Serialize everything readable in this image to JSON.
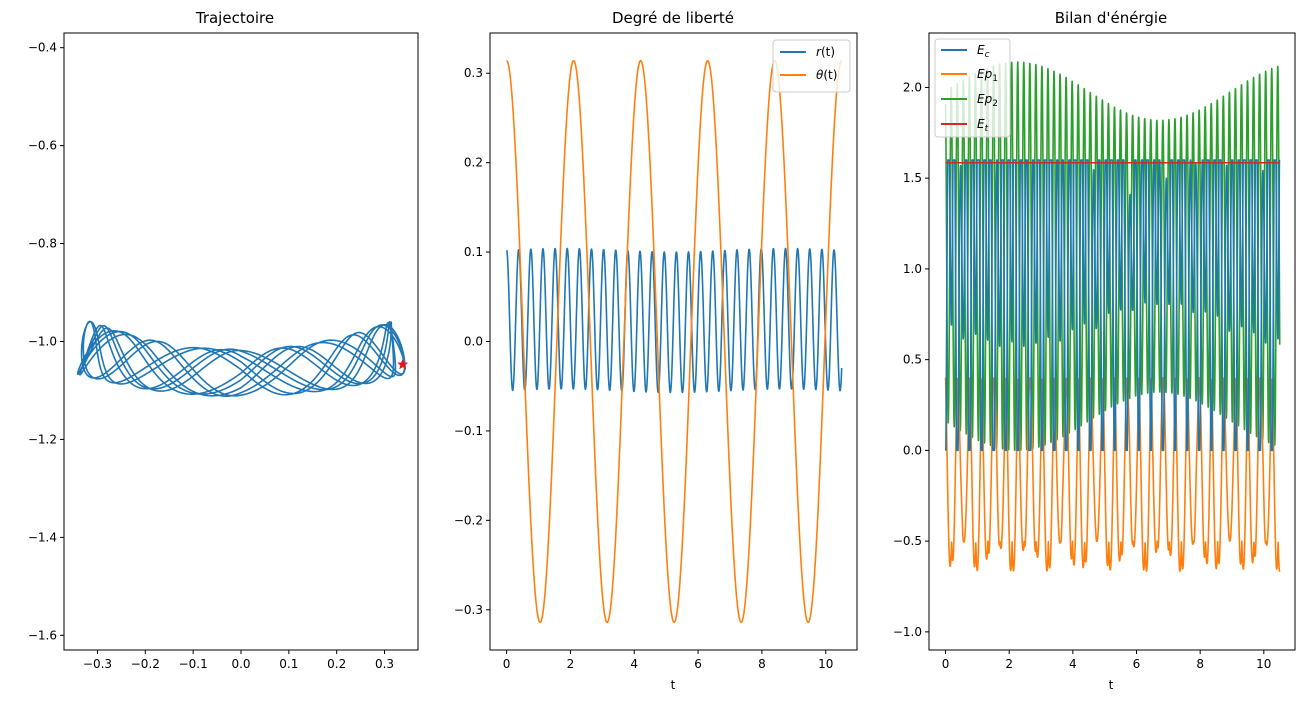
{
  "colors": {
    "blue": "#1f77b4",
    "orange": "#ff7f0e",
    "green": "#2ca02c",
    "red": "#d62728",
    "marker": "#e8141a"
  },
  "chart_data": [
    {
      "type": "line",
      "title": "Trajectoire",
      "xlabel": "",
      "ylabel": "",
      "xlim": [
        -0.37,
        0.37
      ],
      "ylim": [
        -1.63,
        -0.37
      ],
      "xticks": [
        -0.3,
        -0.2,
        -0.1,
        0.0,
        0.1,
        0.2,
        0.3
      ],
      "xtick_labels": [
        "−0.3",
        "−0.2",
        "−0.1",
        "0.0",
        "0.1",
        "0.2",
        "0.3"
      ],
      "yticks": [
        -0.4,
        -0.6,
        -0.8,
        -1.0,
        -1.2,
        -1.4,
        -1.6
      ],
      "ytick_labels": [
        "−0.4",
        "−0.6",
        "−0.8",
        "−1.0",
        "−1.2",
        "−1.4",
        "−1.6"
      ],
      "series": [
        {
          "name": "trajectory",
          "color": "blue",
          "model": "pendulum_xy",
          "x_range": [
            -0.34,
            0.34
          ],
          "y_range": [
            -1.1,
            -0.9
          ]
        }
      ],
      "marker": {
        "x": 0.338,
        "y": -1.047,
        "color": "marker",
        "shape": "star"
      }
    },
    {
      "type": "line",
      "title": "Degré de liberté",
      "xlabel": "t",
      "ylabel": "",
      "xlim": [
        -0.52,
        10.98
      ],
      "ylim": [
        -0.345,
        0.345
      ],
      "xticks": [
        0,
        2,
        4,
        6,
        8,
        10
      ],
      "xtick_labels": [
        "0",
        "2",
        "4",
        "6",
        "8",
        "10"
      ],
      "yticks": [
        0.3,
        0.2,
        0.1,
        0.0,
        -0.1,
        -0.2,
        -0.3
      ],
      "ytick_labels": [
        "0.3",
        "0.2",
        "0.1",
        "0.0",
        "−0.1",
        "−0.2",
        "−0.3"
      ],
      "legend": {
        "position": "top-right",
        "entries": [
          "r(t)",
          "θ(t)"
        ]
      },
      "series": [
        {
          "name": "r(t)",
          "color": "blue",
          "model": "r",
          "t_range": [
            0,
            10.5
          ],
          "min": -0.055,
          "max": 0.102
        },
        {
          "name": "θ(t)",
          "color": "orange",
          "model": "theta",
          "t_range": [
            0,
            10.5
          ],
          "min": -0.314,
          "max": 0.314
        }
      ]
    },
    {
      "type": "line",
      "title": "Bilan d'énérgie",
      "xlabel": "t",
      "ylabel": "",
      "xlim": [
        -0.52,
        10.98
      ],
      "ylim": [
        -1.1,
        2.3
      ],
      "xticks": [
        0,
        2,
        4,
        6,
        8,
        10
      ],
      "xtick_labels": [
        "0",
        "2",
        "4",
        "6",
        "8",
        "10"
      ],
      "yticks": [
        2.0,
        1.5,
        1.0,
        0.5,
        0.0,
        -0.5,
        -1.0
      ],
      "ytick_labels": [
        "2.0",
        "1.5",
        "1.0",
        "0.5",
        "0.0",
        "−0.5",
        "−1.0"
      ],
      "legend": {
        "position": "top-left",
        "entries": [
          "E_c",
          "Ep_1",
          "Ep_2",
          "E_t"
        ]
      },
      "series": [
        {
          "name": "E_c",
          "color": "blue",
          "model": "ec",
          "min": 0.0,
          "max": 1.6
        },
        {
          "name": "Ep_1",
          "color": "orange",
          "model": "ep1",
          "min": -0.93,
          "max": 0.82
        },
        {
          "name": "Ep_2",
          "color": "green",
          "model": "ep2",
          "min": 0.0,
          "max": 2.14
        },
        {
          "name": "E_t",
          "color": "red",
          "model": "const",
          "value": 1.585
        }
      ]
    }
  ],
  "legend_labels": {
    "r": {
      "main": "r",
      "rest": "(t)"
    },
    "theta": {
      "main": "θ",
      "rest": "(t)"
    },
    "ec": {
      "main": "E",
      "sub": "c"
    },
    "ep1": {
      "main": "Ep",
      "sub": "1"
    },
    "ep2": {
      "main": "Ep",
      "sub": "2"
    },
    "et": {
      "main": "E",
      "sub": "t"
    }
  }
}
